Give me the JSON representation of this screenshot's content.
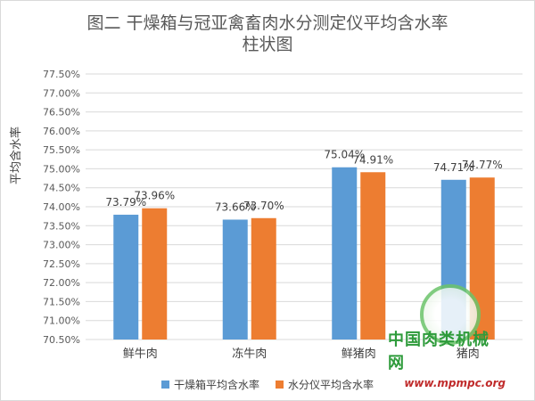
{
  "title_line1": "图二 干燥箱与冠亚禽畜肉水分测定仪平均含水率",
  "title_line2": "柱状图",
  "watermark": {
    "text": "中国肉类机械网",
    "url": "www.mpmpc.org"
  },
  "colors": {
    "series1": "#5b9bd5",
    "series2": "#ed7d31",
    "grid": "#d9d9d9",
    "axis_text": "#595959"
  },
  "chart_data": {
    "type": "bar",
    "ylabel": "平均含水率",
    "ylim": [
      70.5,
      77.5
    ],
    "ytick_step": 0.5,
    "ytick_labels": [
      "70.50%",
      "71.00%",
      "71.50%",
      "72.00%",
      "72.50%",
      "73.00%",
      "73.50%",
      "74.00%",
      "74.50%",
      "75.00%",
      "75.50%",
      "76.00%",
      "76.50%",
      "77.00%",
      "77.50%"
    ],
    "categories": [
      "鲜牛肉",
      "冻牛肉",
      "鲜猪肉",
      "猪肉"
    ],
    "series": [
      {
        "name": "干燥箱平均含水率",
        "values": [
          73.79,
          73.66,
          75.04,
          74.71
        ],
        "labels": [
          "73.79%",
          "73.66%",
          "75.04%",
          "74.71%"
        ]
      },
      {
        "name": "水分仪平均含水率",
        "values": [
          73.96,
          73.7,
          74.91,
          74.77
        ],
        "labels": [
          "73.96%",
          "73.70%",
          "74.91%",
          "74.77%"
        ]
      }
    ],
    "legend_position": "bottom",
    "grid": true
  }
}
